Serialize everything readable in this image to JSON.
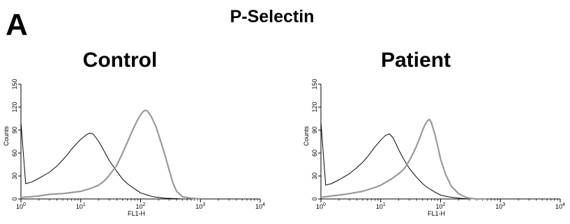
{
  "panel_label": "A",
  "figure_title": "P-Selectin",
  "chart_data": [
    {
      "type": "line",
      "title": "Control",
      "xlabel": "FL1-H",
      "ylabel": "Counts",
      "xscale": "log",
      "xlim": [
        1,
        10000
      ],
      "ylim": [
        0,
        150
      ],
      "xticks": [
        1,
        10,
        100,
        1000,
        10000
      ],
      "xtick_labels": [
        {
          "base": "10",
          "exp": "0"
        },
        {
          "base": "10",
          "exp": "1"
        },
        {
          "base": "10",
          "exp": "2"
        },
        {
          "base": "10",
          "exp": "3"
        },
        {
          "base": "10",
          "exp": "4"
        }
      ],
      "yticks": [
        0,
        30,
        60,
        90,
        120,
        150
      ],
      "ytick_labels": [
        "0",
        "30",
        "60",
        "90",
        "120",
        "150"
      ],
      "series": [
        {
          "color": "#000000",
          "x": [
            1,
            1.2,
            1.5,
            2,
            3,
            4,
            5,
            6,
            7,
            8,
            10,
            12,
            14,
            16,
            18,
            20,
            24,
            30,
            40,
            50,
            60,
            80,
            100,
            130,
            160,
            200,
            250,
            350,
            500,
            1000
          ],
          "y": [
            100,
            20,
            22,
            27,
            35,
            43,
            51,
            58,
            65,
            70,
            78,
            83,
            86,
            85,
            80,
            75,
            64,
            50,
            36,
            26,
            20,
            13,
            8,
            5,
            3,
            2,
            1,
            0.5,
            0,
            0
          ]
        },
        {
          "color": "#999999",
          "x": [
            1,
            1.5,
            2,
            3,
            5,
            8,
            10,
            15,
            20,
            25,
            30,
            40,
            50,
            60,
            70,
            80,
            90,
            100,
            110,
            120,
            130,
            150,
            180,
            200,
            250,
            300,
            350,
            400,
            500,
            700,
            1000
          ],
          "y": [
            2,
            3,
            4,
            6,
            7,
            9,
            10,
            14,
            18,
            24,
            31,
            44,
            60,
            74,
            86,
            96,
            104,
            110,
            114,
            116,
            115,
            108,
            95,
            84,
            60,
            38,
            20,
            10,
            3,
            1,
            0
          ]
        }
      ]
    },
    {
      "type": "line",
      "title": "Patient",
      "xlabel": "FL1-H",
      "ylabel": "Counts",
      "xscale": "log",
      "xlim": [
        1,
        10000
      ],
      "ylim": [
        0,
        150
      ],
      "xticks": [
        1,
        10,
        100,
        1000,
        10000
      ],
      "xtick_labels": [
        {
          "base": "10",
          "exp": "0"
        },
        {
          "base": "10",
          "exp": "1"
        },
        {
          "base": "10",
          "exp": "2"
        },
        {
          "base": "10",
          "exp": "3"
        },
        {
          "base": "10",
          "exp": "4"
        }
      ],
      "yticks": [
        0,
        30,
        60,
        90,
        120,
        150
      ],
      "ytick_labels": [
        "0",
        "30",
        "60",
        "90",
        "120",
        "150"
      ],
      "series": [
        {
          "color": "#000000",
          "x": [
            1,
            1.2,
            1.5,
            2,
            3,
            4,
            5,
            6,
            7,
            8,
            10,
            12,
            14,
            16,
            18,
            20,
            25,
            30,
            40,
            50,
            60,
            80,
            100,
            130,
            160,
            200,
            300,
            500
          ],
          "y": [
            100,
            18,
            20,
            25,
            33,
            41,
            48,
            55,
            62,
            68,
            77,
            83,
            85,
            80,
            72,
            64,
            50,
            40,
            28,
            20,
            15,
            9,
            5,
            3,
            2,
            1,
            0,
            0
          ]
        },
        {
          "color": "#999999",
          "x": [
            1,
            1.5,
            2,
            3,
            5,
            8,
            10,
            15,
            20,
            25,
            30,
            35,
            40,
            45,
            50,
            55,
            60,
            65,
            70,
            80,
            90,
            100,
            120,
            150,
            200,
            250,
            300,
            400,
            600
          ],
          "y": [
            2,
            4,
            5,
            7,
            10,
            15,
            18,
            26,
            33,
            40,
            50,
            60,
            70,
            80,
            90,
            97,
            102,
            104,
            100,
            85,
            68,
            52,
            33,
            17,
            7,
            3,
            1,
            0,
            0
          ]
        }
      ]
    }
  ]
}
